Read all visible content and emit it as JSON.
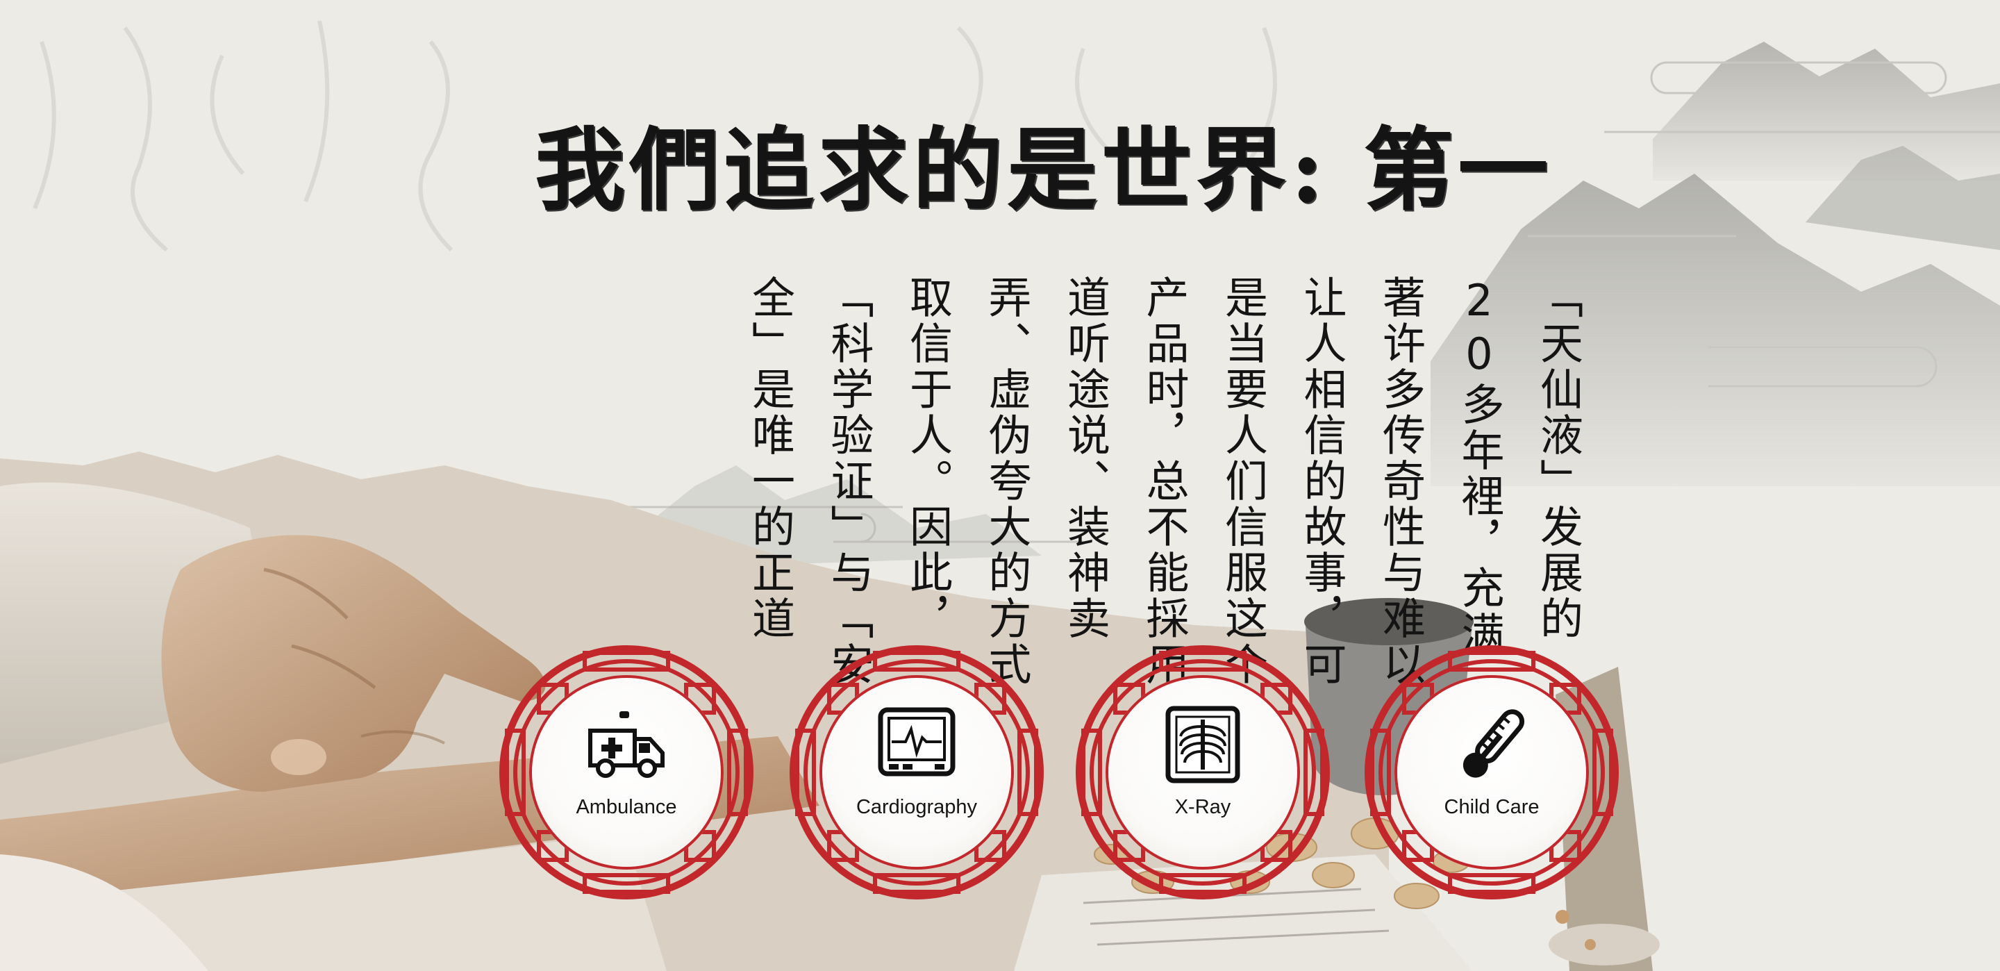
{
  "headline": "我們追求的是世界: 第一",
  "body": "「天仙液」发展的20多年裡，充满著许多传奇性与难以让人相信的故事，可是当要人们信服这个产品时，总不能採用道听途说、装神卖弄、虚伪夸大的方式取信于人。因此，「科学验证」与「安全」是唯一的正道",
  "services": [
    {
      "label": "Ambulance",
      "icon": "ambulance-icon"
    },
    {
      "label": "Cardiography",
      "icon": "cardiography-monitor-icon"
    },
    {
      "label": "X-Ray",
      "icon": "x-ray-ribcage-icon"
    },
    {
      "label": "Child Care",
      "icon": "thermometer-icon"
    }
  ],
  "colors": {
    "accent_red": "#c2272b",
    "ink": "#141414",
    "paper": "#ecebe6"
  }
}
